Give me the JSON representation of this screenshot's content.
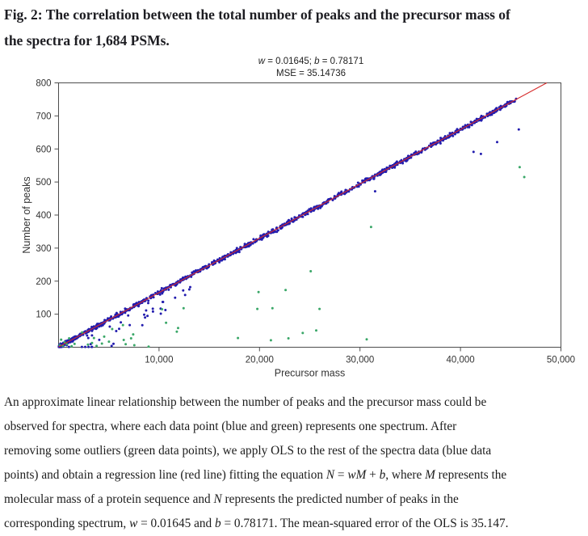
{
  "figure": {
    "heading_line1": "Fig. 2: The correlation between the total number of peaks and the precursor mass of",
    "heading_line2": "the spectra for 1,684 PSMs."
  },
  "chart_data": {
    "type": "scatter",
    "title_segments": [
      {
        "t": "w",
        "i": true
      },
      {
        "t": " = 0.01645; ",
        "i": false
      },
      {
        "t": "b",
        "i": true
      },
      {
        "t": " = 0.78171",
        "i": false
      }
    ],
    "subtitle": "MSE = 35.14736",
    "xlabel": "Precursor mass",
    "ylabel": "Number of peaks",
    "xlim": [
      0,
      50000
    ],
    "ylim": [
      0,
      800
    ],
    "grid": false,
    "legend": "none",
    "x_ticks": [
      {
        "v": 10000,
        "label": "10,000"
      },
      {
        "v": 20000,
        "label": "20,000"
      },
      {
        "v": 30000,
        "label": "30,000"
      },
      {
        "v": 40000,
        "label": "40,000"
      },
      {
        "v": 50000,
        "label": "50,000"
      }
    ],
    "y_ticks": [
      {
        "v": 100,
        "label": "100"
      },
      {
        "v": 200,
        "label": "200"
      },
      {
        "v": 300,
        "label": "300"
      },
      {
        "v": 400,
        "label": "400"
      },
      {
        "v": 500,
        "label": "500"
      },
      {
        "v": 600,
        "label": "600"
      },
      {
        "v": 700,
        "label": "700"
      },
      {
        "v": 800,
        "label": "800"
      }
    ],
    "regression_line": {
      "w": 0.01645,
      "b": 0.78171,
      "color": "#d62b2b",
      "x_start": 0,
      "x_end": 48585
    },
    "colors": {
      "inlier_blue": "#221cae",
      "outlier_green": "#3aa768",
      "line_red": "#d62b2b"
    },
    "series": [
      {
        "name": "spectra inliers (blue)",
        "color": "#221cae",
        "marker_radius": 1.5,
        "n_total_stated": 1684,
        "band": {
          "comment": "dense band following y = 0.01645x + 0.78171 from x~60 to x~45600",
          "count": 1100,
          "x_min": 60,
          "x_max": 45600,
          "skew": 1.15,
          "jitter": 6.4,
          "origin_cluster_count": 150,
          "origin_cluster_x_max": 1800,
          "straggler_prob": 0.06,
          "straggler_x_max": 15000,
          "straggler_depth": 70,
          "seed": 1234567
        },
        "outlier_points": [
          [
            5740,
            49
          ],
          [
            6200,
            75
          ],
          [
            7080,
            67
          ],
          [
            8850,
            95
          ],
          [
            9400,
            108
          ],
          [
            10160,
            117
          ],
          [
            10400,
            137
          ],
          [
            11600,
            150
          ],
          [
            12600,
            158
          ],
          [
            13100,
            182
          ],
          [
            31500,
            472
          ],
          [
            41300,
            591
          ],
          [
            42030,
            585
          ],
          [
            43650,
            621
          ],
          [
            45800,
            659
          ]
        ]
      },
      {
        "name": "removed outliers (green)",
        "color": "#3aa768",
        "marker_radius": 1.5,
        "points": [
          [
            120,
            6
          ],
          [
            260,
            23
          ],
          [
            420,
            4
          ],
          [
            600,
            15
          ],
          [
            820,
            9
          ],
          [
            1050,
            27
          ],
          [
            1300,
            3
          ],
          [
            1590,
            10
          ],
          [
            2350,
            45
          ],
          [
            2930,
            8
          ],
          [
            3330,
            13
          ],
          [
            3520,
            28
          ],
          [
            3790,
            4
          ],
          [
            4320,
            11
          ],
          [
            4540,
            32
          ],
          [
            5020,
            17
          ],
          [
            5340,
            55
          ],
          [
            6410,
            67
          ],
          [
            6490,
            22
          ],
          [
            6680,
            9
          ],
          [
            7220,
            27
          ],
          [
            7430,
            39
          ],
          [
            7540,
            6
          ],
          [
            8960,
            2
          ],
          [
            10300,
            115
          ],
          [
            10700,
            74
          ],
          [
            11770,
            47
          ],
          [
            11900,
            58
          ],
          [
            12440,
            118
          ],
          [
            17850,
            28
          ],
          [
            19780,
            116
          ],
          [
            19900,
            167
          ],
          [
            21130,
            21
          ],
          [
            21290,
            118
          ],
          [
            22600,
            173
          ],
          [
            22880,
            27
          ],
          [
            24300,
            43
          ],
          [
            25100,
            230
          ],
          [
            25645,
            51
          ],
          [
            25970,
            116
          ],
          [
            30670,
            24
          ],
          [
            31100,
            364
          ],
          [
            45890,
            545
          ],
          [
            46350,
            515
          ]
        ]
      }
    ]
  },
  "caption": {
    "lines": [
      [
        {
          "t": "An approximate linear relationship between the number of peaks and the precursor mass could be",
          "i": false
        }
      ],
      [
        {
          "t": "observed for spectra, where each data point (blue and green) represents one spectrum. After",
          "i": false
        }
      ],
      [
        {
          "t": "removing some outliers (green data points), we apply OLS to the rest of the spectra data (blue data",
          "i": false
        }
      ],
      [
        {
          "t": "points) and obtain a regression line (red line) fitting the equation ",
          "i": false
        },
        {
          "t": "N",
          "i": true
        },
        {
          "t": " = ",
          "i": false
        },
        {
          "t": "wM",
          "i": true
        },
        {
          "t": " + ",
          "i": false
        },
        {
          "t": "b",
          "i": true
        },
        {
          "t": ", where ",
          "i": false
        },
        {
          "t": "M",
          "i": true
        },
        {
          "t": " represents the",
          "i": false
        }
      ],
      [
        {
          "t": "molecular mass of a protein sequence and ",
          "i": false
        },
        {
          "t": "N",
          "i": true
        },
        {
          "t": " represents the predicted number of peaks in the",
          "i": false
        }
      ],
      [
        {
          "t": "corresponding spectrum, ",
          "i": false
        },
        {
          "t": "w",
          "i": true
        },
        {
          "t": " = 0.01645 and ",
          "i": false
        },
        {
          "t": "b",
          "i": true
        },
        {
          "t": " = 0.78171. The mean-squared error of the OLS is 35.147.",
          "i": false
        }
      ]
    ]
  }
}
